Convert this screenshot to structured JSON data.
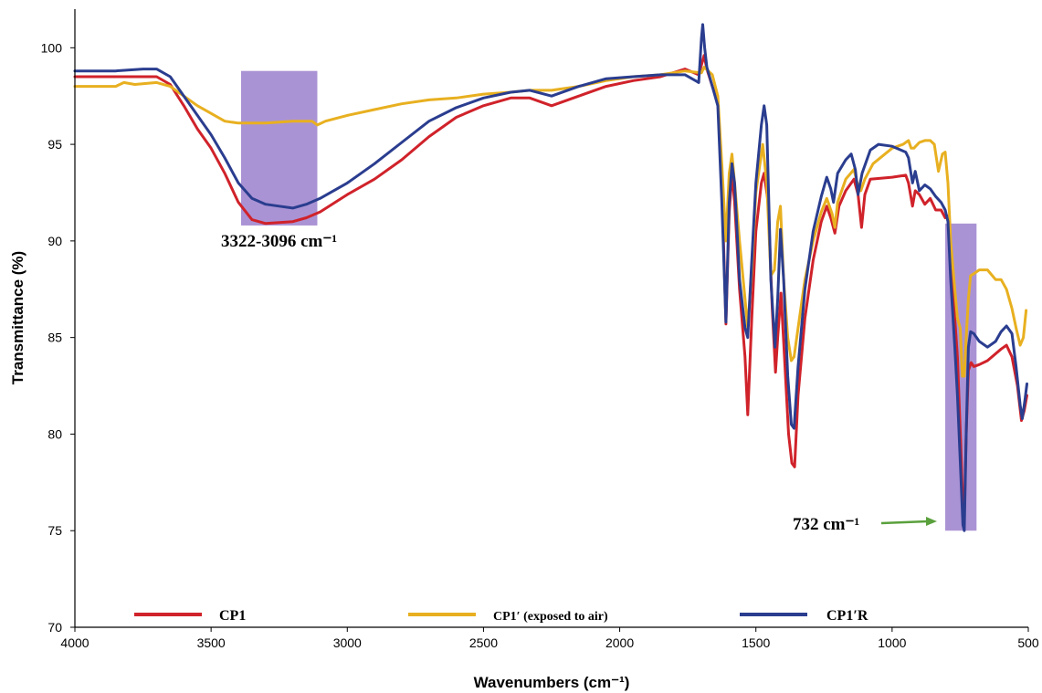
{
  "chart_data": {
    "type": "line",
    "title": "",
    "xlabel": "Wavenumbers (cm⁻¹)",
    "ylabel": "Transmittance (%)",
    "xlim": [
      4000,
      500
    ],
    "ylim": [
      70,
      102
    ],
    "x_reversed": true,
    "x_ticks": [
      4000,
      3500,
      3000,
      2500,
      2000,
      1500,
      1000,
      500
    ],
    "y_ticks": [
      70,
      75,
      80,
      85,
      90,
      95,
      100
    ],
    "grid": false,
    "legend_position": "bottom",
    "series": [
      {
        "name": "CP1",
        "color": "#d0222a",
        "points": [
          [
            4000,
            98.5
          ],
          [
            3800,
            98.5
          ],
          [
            3700,
            98.5
          ],
          [
            3650,
            98.1
          ],
          [
            3600,
            97.0
          ],
          [
            3550,
            95.8
          ],
          [
            3500,
            94.8
          ],
          [
            3450,
            93.5
          ],
          [
            3400,
            92.0
          ],
          [
            3350,
            91.1
          ],
          [
            3300,
            90.9
          ],
          [
            3200,
            91.0
          ],
          [
            3150,
            91.2
          ],
          [
            3100,
            91.5
          ],
          [
            3000,
            92.4
          ],
          [
            2900,
            93.2
          ],
          [
            2800,
            94.2
          ],
          [
            2700,
            95.4
          ],
          [
            2600,
            96.4
          ],
          [
            2500,
            97.0
          ],
          [
            2400,
            97.4
          ],
          [
            2330,
            97.4
          ],
          [
            2250,
            97.0
          ],
          [
            2150,
            97.5
          ],
          [
            2050,
            98.0
          ],
          [
            1950,
            98.3
          ],
          [
            1850,
            98.5
          ],
          [
            1760,
            98.9
          ],
          [
            1710,
            98.6
          ],
          [
            1690,
            99.6
          ],
          [
            1680,
            98.9
          ],
          [
            1660,
            98.0
          ],
          [
            1640,
            97.3
          ],
          [
            1625,
            93.0
          ],
          [
            1610,
            85.7
          ],
          [
            1598,
            91.5
          ],
          [
            1588,
            93.5
          ],
          [
            1578,
            92.0
          ],
          [
            1560,
            87.5
          ],
          [
            1540,
            84.0
          ],
          [
            1530,
            81.0
          ],
          [
            1515,
            86.0
          ],
          [
            1500,
            90.5
          ],
          [
            1480,
            93.0
          ],
          [
            1470,
            93.5
          ],
          [
            1455,
            92.0
          ],
          [
            1440,
            86.5
          ],
          [
            1428,
            83.2
          ],
          [
            1420,
            85.0
          ],
          [
            1408,
            87.3
          ],
          [
            1395,
            84.0
          ],
          [
            1380,
            80.0
          ],
          [
            1368,
            78.5
          ],
          [
            1358,
            78.3
          ],
          [
            1345,
            82.0
          ],
          [
            1320,
            86.0
          ],
          [
            1290,
            89.0
          ],
          [
            1260,
            91.0
          ],
          [
            1240,
            91.8
          ],
          [
            1225,
            91.2
          ],
          [
            1210,
            90.4
          ],
          [
            1195,
            91.8
          ],
          [
            1170,
            92.6
          ],
          [
            1140,
            93.2
          ],
          [
            1125,
            92.4
          ],
          [
            1112,
            90.7
          ],
          [
            1100,
            92.4
          ],
          [
            1080,
            93.2
          ],
          [
            1000,
            93.3
          ],
          [
            950,
            93.4
          ],
          [
            940,
            93.0
          ],
          [
            925,
            91.8
          ],
          [
            915,
            92.6
          ],
          [
            900,
            92.4
          ],
          [
            880,
            91.9
          ],
          [
            860,
            92.2
          ],
          [
            840,
            91.6
          ],
          [
            820,
            91.6
          ],
          [
            805,
            91.2
          ],
          [
            795,
            91.3
          ],
          [
            785,
            89.0
          ],
          [
            770,
            86.0
          ],
          [
            760,
            84.0
          ],
          [
            748,
            79.5
          ],
          [
            740,
            76.0
          ],
          [
            735,
            75.8
          ],
          [
            728,
            80.0
          ],
          [
            720,
            83.3
          ],
          [
            710,
            83.7
          ],
          [
            700,
            83.5
          ],
          [
            680,
            83.6
          ],
          [
            650,
            83.8
          ],
          [
            600,
            84.4
          ],
          [
            580,
            84.6
          ],
          [
            560,
            84.0
          ],
          [
            540,
            82.5
          ],
          [
            525,
            80.7
          ],
          [
            515,
            81.2
          ],
          [
            505,
            82.0
          ]
        ]
      },
      {
        "name": "CP1′ (exposed to air)",
        "color": "#e8b020",
        "points": [
          [
            4000,
            98.0
          ],
          [
            3850,
            98.0
          ],
          [
            3820,
            98.2
          ],
          [
            3780,
            98.1
          ],
          [
            3700,
            98.2
          ],
          [
            3650,
            98.0
          ],
          [
            3600,
            97.5
          ],
          [
            3550,
            97.0
          ],
          [
            3500,
            96.6
          ],
          [
            3450,
            96.2
          ],
          [
            3400,
            96.1
          ],
          [
            3300,
            96.1
          ],
          [
            3200,
            96.2
          ],
          [
            3130,
            96.2
          ],
          [
            3110,
            96.0
          ],
          [
            3080,
            96.2
          ],
          [
            3000,
            96.5
          ],
          [
            2900,
            96.8
          ],
          [
            2800,
            97.1
          ],
          [
            2700,
            97.3
          ],
          [
            2600,
            97.4
          ],
          [
            2500,
            97.6
          ],
          [
            2400,
            97.7
          ],
          [
            2330,
            97.8
          ],
          [
            2250,
            97.8
          ],
          [
            2150,
            98.0
          ],
          [
            2050,
            98.3
          ],
          [
            1950,
            98.5
          ],
          [
            1850,
            98.6
          ],
          [
            1760,
            98.8
          ],
          [
            1700,
            98.7
          ],
          [
            1690,
            99.0
          ],
          [
            1660,
            98.6
          ],
          [
            1640,
            97.5
          ],
          [
            1625,
            94.0
          ],
          [
            1610,
            90.0
          ],
          [
            1598,
            93.5
          ],
          [
            1588,
            94.5
          ],
          [
            1578,
            93.0
          ],
          [
            1560,
            90.0
          ],
          [
            1540,
            87.0
          ],
          [
            1530,
            85.5
          ],
          [
            1515,
            88.5
          ],
          [
            1500,
            92.5
          ],
          [
            1475,
            95.0
          ],
          [
            1460,
            93.0
          ],
          [
            1445,
            88.2
          ],
          [
            1432,
            88.5
          ],
          [
            1420,
            91.0
          ],
          [
            1410,
            91.8
          ],
          [
            1398,
            88.0
          ],
          [
            1383,
            85.0
          ],
          [
            1370,
            83.8
          ],
          [
            1360,
            84.0
          ],
          [
            1340,
            86.0
          ],
          [
            1320,
            88.0
          ],
          [
            1290,
            90.0
          ],
          [
            1260,
            91.5
          ],
          [
            1240,
            92.2
          ],
          [
            1220,
            91.4
          ],
          [
            1210,
            90.7
          ],
          [
            1200,
            92.0
          ],
          [
            1170,
            93.2
          ],
          [
            1140,
            93.7
          ],
          [
            1128,
            93.0
          ],
          [
            1115,
            92.6
          ],
          [
            1100,
            93.2
          ],
          [
            1070,
            94.0
          ],
          [
            1000,
            94.8
          ],
          [
            960,
            95.0
          ],
          [
            940,
            95.2
          ],
          [
            930,
            94.8
          ],
          [
            920,
            94.8
          ],
          [
            900,
            95.1
          ],
          [
            880,
            95.2
          ],
          [
            860,
            95.2
          ],
          [
            845,
            95.0
          ],
          [
            830,
            93.6
          ],
          [
            815,
            94.5
          ],
          [
            805,
            94.6
          ],
          [
            795,
            93.0
          ],
          [
            785,
            90.0
          ],
          [
            770,
            87.5
          ],
          [
            760,
            86.0
          ],
          [
            750,
            85.5
          ],
          [
            742,
            83.0
          ],
          [
            735,
            83.0
          ],
          [
            728,
            85.0
          ],
          [
            720,
            87.0
          ],
          [
            712,
            88.2
          ],
          [
            700,
            88.3
          ],
          [
            680,
            88.5
          ],
          [
            650,
            88.5
          ],
          [
            620,
            88.0
          ],
          [
            600,
            88.0
          ],
          [
            580,
            87.5
          ],
          [
            560,
            86.5
          ],
          [
            545,
            85.5
          ],
          [
            530,
            84.6
          ],
          [
            518,
            85.0
          ],
          [
            508,
            86.4
          ]
        ]
      },
      {
        "name": "CP1′R",
        "color": "#2a3d8f",
        "points": [
          [
            4000,
            98.8
          ],
          [
            3850,
            98.8
          ],
          [
            3750,
            98.9
          ],
          [
            3700,
            98.9
          ],
          [
            3650,
            98.5
          ],
          [
            3600,
            97.5
          ],
          [
            3550,
            96.5
          ],
          [
            3500,
            95.5
          ],
          [
            3450,
            94.3
          ],
          [
            3400,
            93.0
          ],
          [
            3350,
            92.2
          ],
          [
            3300,
            91.9
          ],
          [
            3250,
            91.8
          ],
          [
            3200,
            91.7
          ],
          [
            3150,
            91.9
          ],
          [
            3100,
            92.2
          ],
          [
            3000,
            93.0
          ],
          [
            2900,
            94.0
          ],
          [
            2800,
            95.1
          ],
          [
            2700,
            96.2
          ],
          [
            2600,
            96.9
          ],
          [
            2500,
            97.4
          ],
          [
            2400,
            97.7
          ],
          [
            2330,
            97.8
          ],
          [
            2250,
            97.5
          ],
          [
            2150,
            98.0
          ],
          [
            2050,
            98.4
          ],
          [
            1950,
            98.5
          ],
          [
            1850,
            98.6
          ],
          [
            1760,
            98.6
          ],
          [
            1710,
            98.2
          ],
          [
            1700,
            100.5
          ],
          [
            1695,
            101.2
          ],
          [
            1688,
            100.0
          ],
          [
            1680,
            99.0
          ],
          [
            1660,
            98.0
          ],
          [
            1640,
            97.0
          ],
          [
            1625,
            92.0
          ],
          [
            1610,
            85.8
          ],
          [
            1598,
            92.0
          ],
          [
            1588,
            94.0
          ],
          [
            1578,
            93.0
          ],
          [
            1560,
            88.0
          ],
          [
            1540,
            85.5
          ],
          [
            1530,
            85.0
          ],
          [
            1515,
            89.0
          ],
          [
            1500,
            93.0
          ],
          [
            1480,
            96.0
          ],
          [
            1470,
            97.0
          ],
          [
            1460,
            96.0
          ],
          [
            1445,
            88.0
          ],
          [
            1430,
            84.5
          ],
          [
            1420,
            87.0
          ],
          [
            1410,
            90.6
          ],
          [
            1398,
            88.0
          ],
          [
            1383,
            83.0
          ],
          [
            1370,
            80.5
          ],
          [
            1360,
            80.3
          ],
          [
            1345,
            83.5
          ],
          [
            1320,
            87.5
          ],
          [
            1290,
            90.5
          ],
          [
            1260,
            92.3
          ],
          [
            1240,
            93.3
          ],
          [
            1225,
            92.7
          ],
          [
            1215,
            92.0
          ],
          [
            1200,
            93.5
          ],
          [
            1170,
            94.2
          ],
          [
            1150,
            94.5
          ],
          [
            1135,
            93.7
          ],
          [
            1125,
            92.4
          ],
          [
            1110,
            93.5
          ],
          [
            1080,
            94.7
          ],
          [
            1050,
            95.0
          ],
          [
            1000,
            94.9
          ],
          [
            950,
            94.6
          ],
          [
            940,
            94.3
          ],
          [
            925,
            93.0
          ],
          [
            915,
            93.6
          ],
          [
            900,
            92.6
          ],
          [
            880,
            92.9
          ],
          [
            860,
            92.7
          ],
          [
            840,
            92.3
          ],
          [
            820,
            92.0
          ],
          [
            805,
            91.6
          ],
          [
            795,
            91.0
          ],
          [
            785,
            88.0
          ],
          [
            770,
            84.5
          ],
          [
            760,
            82.0
          ],
          [
            748,
            78.0
          ],
          [
            740,
            75.3
          ],
          [
            735,
            75.0
          ],
          [
            728,
            80.0
          ],
          [
            720,
            84.5
          ],
          [
            712,
            85.3
          ],
          [
            700,
            85.2
          ],
          [
            680,
            84.8
          ],
          [
            650,
            84.5
          ],
          [
            620,
            84.8
          ],
          [
            600,
            85.3
          ],
          [
            580,
            85.6
          ],
          [
            560,
            85.2
          ],
          [
            545,
            83.5
          ],
          [
            530,
            81.5
          ],
          [
            522,
            80.8
          ],
          [
            512,
            81.8
          ],
          [
            505,
            82.6
          ]
        ]
      }
    ],
    "highlights": [
      {
        "x_from": 3390,
        "x_to": 3110,
        "y_from": 90.8,
        "y_to": 98.8,
        "color": "#8e6fc6"
      },
      {
        "x_from": 805,
        "x_to": 690,
        "y_from": 75.0,
        "y_to": 90.9,
        "color": "#8e6fc6"
      }
    ],
    "annotations": [
      {
        "text": "3322-3096 cm⁻¹"
      },
      {
        "text": "732 cm⁻¹",
        "arrow_color": "#5aa03c"
      }
    ]
  }
}
